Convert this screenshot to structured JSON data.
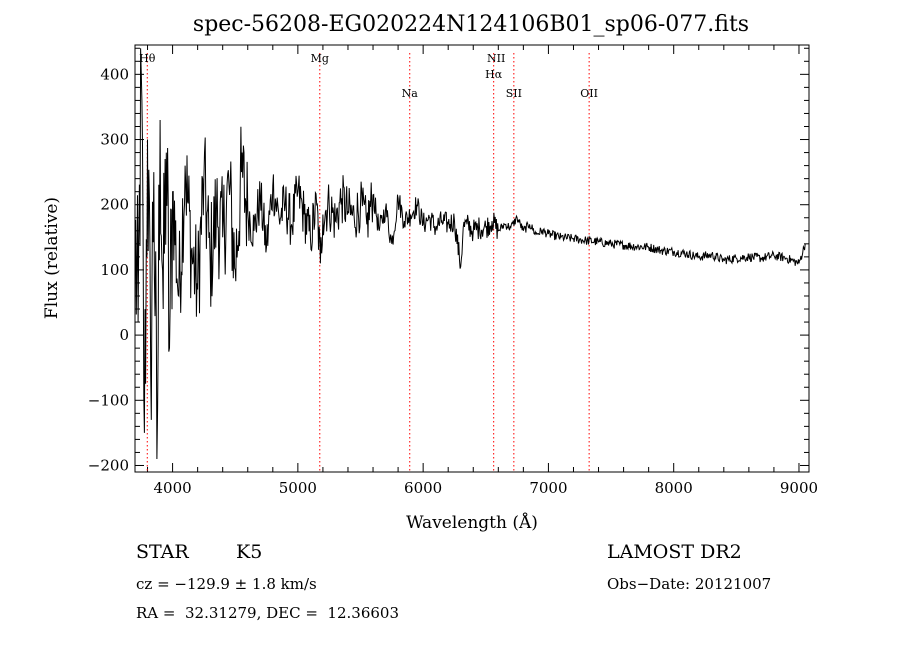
{
  "chart_data": {
    "type": "line",
    "title": "spec-56208-EG020224N124106B01_sp06-077.fits",
    "xlabel": "Wavelength (Å)",
    "ylabel": "Flux (relative)",
    "xlim": [
      3700,
      9080
    ],
    "ylim": [
      -210,
      445
    ],
    "x_ticks": [
      4000,
      5000,
      6000,
      7000,
      8000,
      9000
    ],
    "y_ticks": [
      -200,
      -100,
      0,
      100,
      200,
      300,
      400
    ],
    "x_tick_labels": [
      "4000",
      "5000",
      "6000",
      "7000",
      "8000",
      "9000"
    ],
    "y_tick_labels": [
      "−200",
      "−100",
      "0",
      "100",
      "200",
      "300",
      "400"
    ],
    "series": [
      {
        "name": "flux",
        "x": [
          3700,
          3725,
          3750,
          3775,
          3800,
          3825,
          3850,
          3875,
          3900,
          3925,
          3950,
          3975,
          4000,
          4050,
          4100,
          4150,
          4200,
          4250,
          4300,
          4350,
          4400,
          4450,
          4500,
          4550,
          4600,
          4650,
          4700,
          4750,
          4800,
          4850,
          4900,
          4950,
          5000,
          5050,
          5100,
          5150,
          5180,
          5200,
          5250,
          5300,
          5350,
          5400,
          5450,
          5500,
          5550,
          5600,
          5650,
          5700,
          5750,
          5800,
          5850,
          5900,
          5950,
          6000,
          6050,
          6100,
          6150,
          6200,
          6250,
          6300,
          6320,
          6350,
          6400,
          6450,
          6500,
          6550,
          6600,
          6650,
          6700,
          6750,
          6800,
          6850,
          6900,
          6950,
          7000,
          7100,
          7200,
          7300,
          7400,
          7500,
          7600,
          7700,
          7800,
          7900,
          8000,
          8100,
          8200,
          8300,
          8400,
          8500,
          8600,
          8700,
          8800,
          8900,
          9000,
          9050
        ],
        "y": [
          150,
          20,
          400,
          -150,
          300,
          -60,
          250,
          -190,
          330,
          40,
          280,
          -20,
          220,
          60,
          260,
          130,
          70,
          240,
          110,
          190,
          150,
          230,
          100,
          250,
          190,
          160,
          210,
          135,
          230,
          180,
          200,
          170,
          220,
          185,
          150,
          200,
          110,
          185,
          200,
          175,
          210,
          190,
          180,
          200,
          170,
          215,
          160,
          195,
          140,
          210,
          175,
          185,
          200,
          170,
          180,
          165,
          175,
          170,
          175,
          105,
          165,
          170,
          160,
          165,
          165,
          175,
          160,
          170,
          165,
          180,
          160,
          170,
          155,
          160,
          155,
          150,
          148,
          145,
          143,
          140,
          138,
          136,
          135,
          130,
          128,
          125,
          120,
          123,
          115,
          118,
          120,
          118,
          122,
          118,
          110,
          140
        ]
      }
    ],
    "emission_lines": [
      {
        "label": "Hθ",
        "wavelength": 3798
      },
      {
        "label": "Mg",
        "wavelength": 5175
      },
      {
        "label": "Na",
        "wavelength": 5893
      },
      {
        "label": "NII",
        "wavelength": 6583
      },
      {
        "label": "Hα",
        "wavelength": 6563
      },
      {
        "label": "SII",
        "wavelength": 6724
      },
      {
        "label": "OII",
        "wavelength": 7325
      }
    ]
  },
  "info": {
    "object_class": "STAR",
    "subclass": "K5",
    "survey": "LAMOST DR2",
    "cz": "cz = −129.9 ± 1.8 km/s",
    "obs_date": "Obs−Date: 20121007",
    "coords": "RA =  32.31279, DEC =  12.36603"
  },
  "colors": {
    "line": "#000000",
    "marker": "#ff0000"
  }
}
